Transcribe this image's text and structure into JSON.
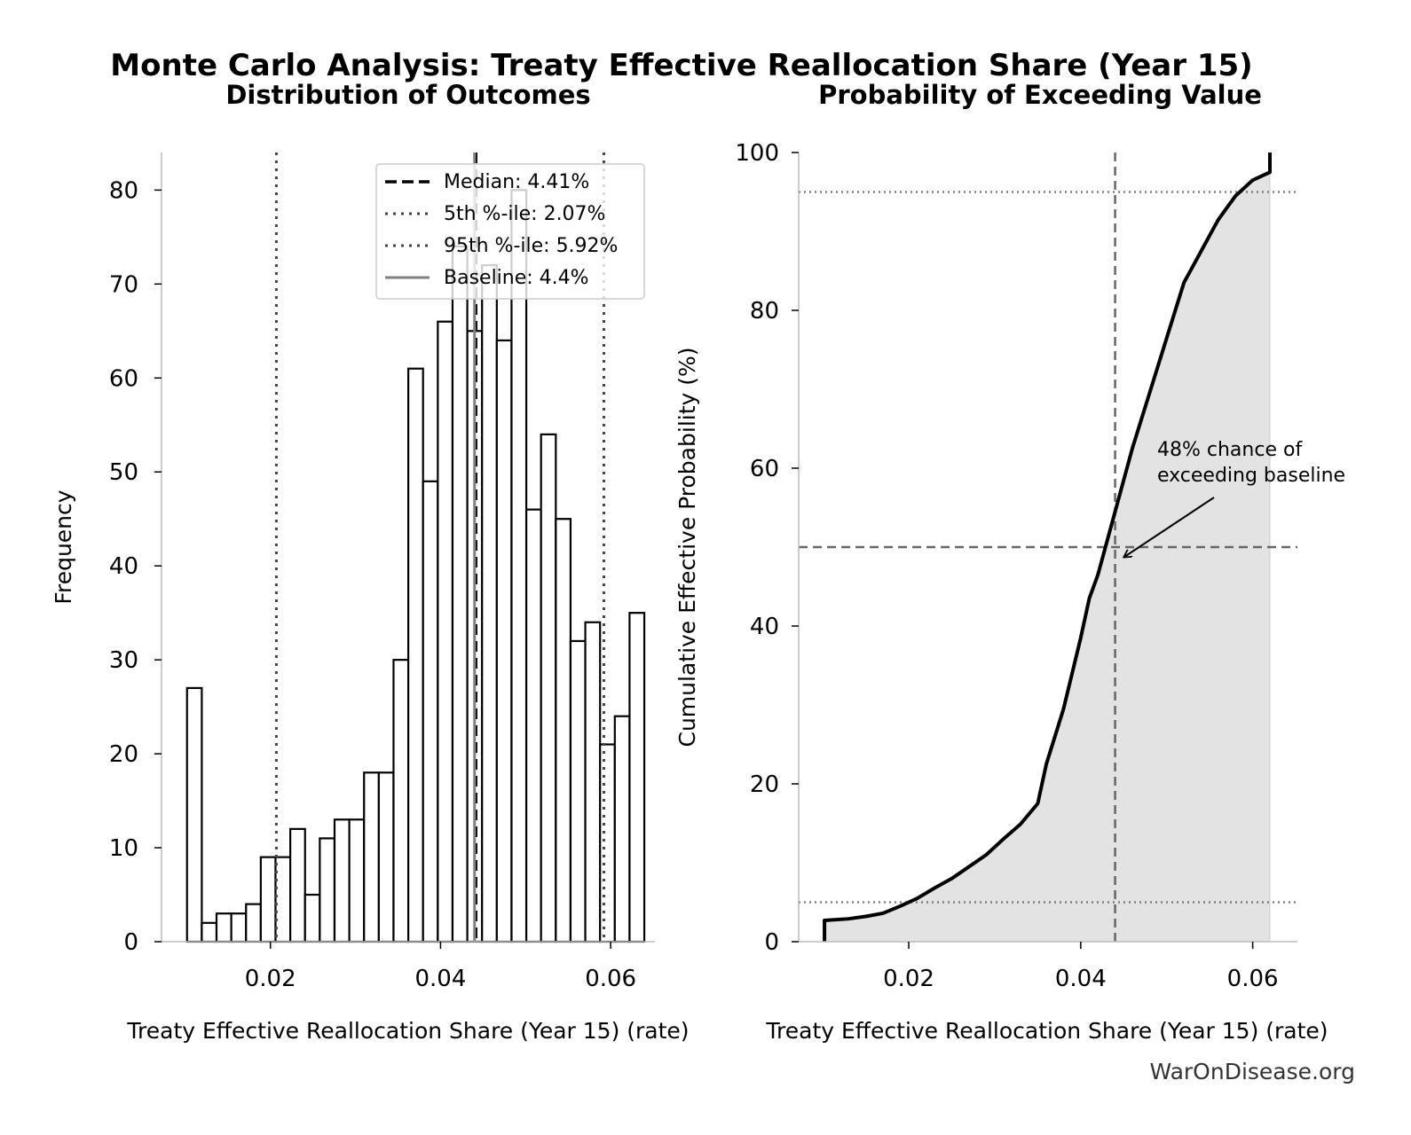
{
  "figure": {
    "suptitle": "Monte Carlo Analysis: Treaty Effective Reallocation Share (Year 15)",
    "watermark": "WarOnDisease.org"
  },
  "chart_data": [
    {
      "type": "bar",
      "title": "Distribution of Outcomes",
      "xlabel": "Treaty Effective Reallocation Share (Year 15) (rate)",
      "ylabel": "Frequency",
      "xlim": [
        0.0072,
        0.0652
      ],
      "ylim": [
        0,
        84
      ],
      "xticks": [
        0.02,
        0.04,
        0.06
      ],
      "yticks": [
        0,
        10,
        20,
        30,
        40,
        50,
        60,
        70,
        80
      ],
      "bin_start": 0.0102,
      "bin_width": 0.001734,
      "values": [
        27,
        2,
        3,
        3,
        4,
        9,
        9,
        12,
        5,
        11,
        13,
        13,
        18,
        18,
        30,
        61,
        49,
        66,
        74,
        65,
        72,
        64,
        80,
        46,
        54,
        45,
        32,
        34,
        21,
        24,
        35
      ],
      "grid": false,
      "legend_position": "upper right",
      "reference_lines": [
        {
          "label": "Median: 4.41%",
          "value": 0.0441,
          "style": "dashed",
          "color": "#000000"
        },
        {
          "label": "5th %-ile: 2.07%",
          "value": 0.0207,
          "style": "dotted",
          "color": "#444444"
        },
        {
          "label": "95th %-ile: 5.92%",
          "value": 0.0592,
          "style": "dotted",
          "color": "#444444"
        },
        {
          "label": "Baseline: 4.4%",
          "value": 0.044,
          "style": "solid",
          "color": "#808080"
        }
      ]
    },
    {
      "type": "area",
      "title": "Probability of Exceeding Value",
      "xlabel": "Treaty Effective Reallocation Share (Year 15) (rate)",
      "ylabel": "Cumulative Effective Probability (%)",
      "xlim": [
        0.0072,
        0.0652
      ],
      "ylim": [
        0,
        100
      ],
      "xticks": [
        0.02,
        0.04,
        0.06
      ],
      "yticks": [
        0,
        20,
        40,
        60,
        80,
        100
      ],
      "grid": false,
      "x": [
        0.0102,
        0.0102,
        0.013,
        0.015,
        0.017,
        0.019,
        0.021,
        0.023,
        0.025,
        0.027,
        0.029,
        0.031,
        0.033,
        0.035,
        0.036,
        0.037,
        0.038,
        0.039,
        0.04,
        0.041,
        0.042,
        0.043,
        0.044,
        0.045,
        0.046,
        0.047,
        0.048,
        0.049,
        0.05,
        0.051,
        0.052,
        0.053,
        0.054,
        0.055,
        0.056,
        0.057,
        0.058,
        0.059,
        0.06,
        0.061,
        0.062,
        0.062
      ],
      "y": [
        0,
        2.7,
        2.9,
        3.2,
        3.6,
        4.5,
        5.5,
        6.8,
        8.0,
        9.5,
        11.0,
        13.0,
        14.9,
        17.5,
        22.5,
        26.0,
        29.5,
        34.0,
        38.5,
        43.5,
        46.5,
        50.5,
        54.5,
        58.5,
        62.5,
        66.0,
        69.5,
        73.0,
        76.5,
        80.0,
        83.5,
        85.5,
        87.5,
        89.5,
        91.5,
        93.0,
        94.5,
        95.5,
        96.5,
        97.0,
        97.5,
        100
      ],
      "reference_lines": [
        {
          "axis": "x",
          "value": 0.044,
          "style": "dashed",
          "color": "#666666"
        },
        {
          "axis": "y",
          "value": 50,
          "style": "dashed",
          "color": "#666666"
        },
        {
          "axis": "y",
          "value": 5,
          "style": "dotted",
          "color": "#808080"
        },
        {
          "axis": "y",
          "value": 95,
          "style": "dotted",
          "color": "#808080"
        }
      ],
      "annotation": {
        "text_line1": "48% chance of",
        "text_line2": "exceeding baseline",
        "x": 0.044,
        "y": 49.0
      }
    }
  ]
}
